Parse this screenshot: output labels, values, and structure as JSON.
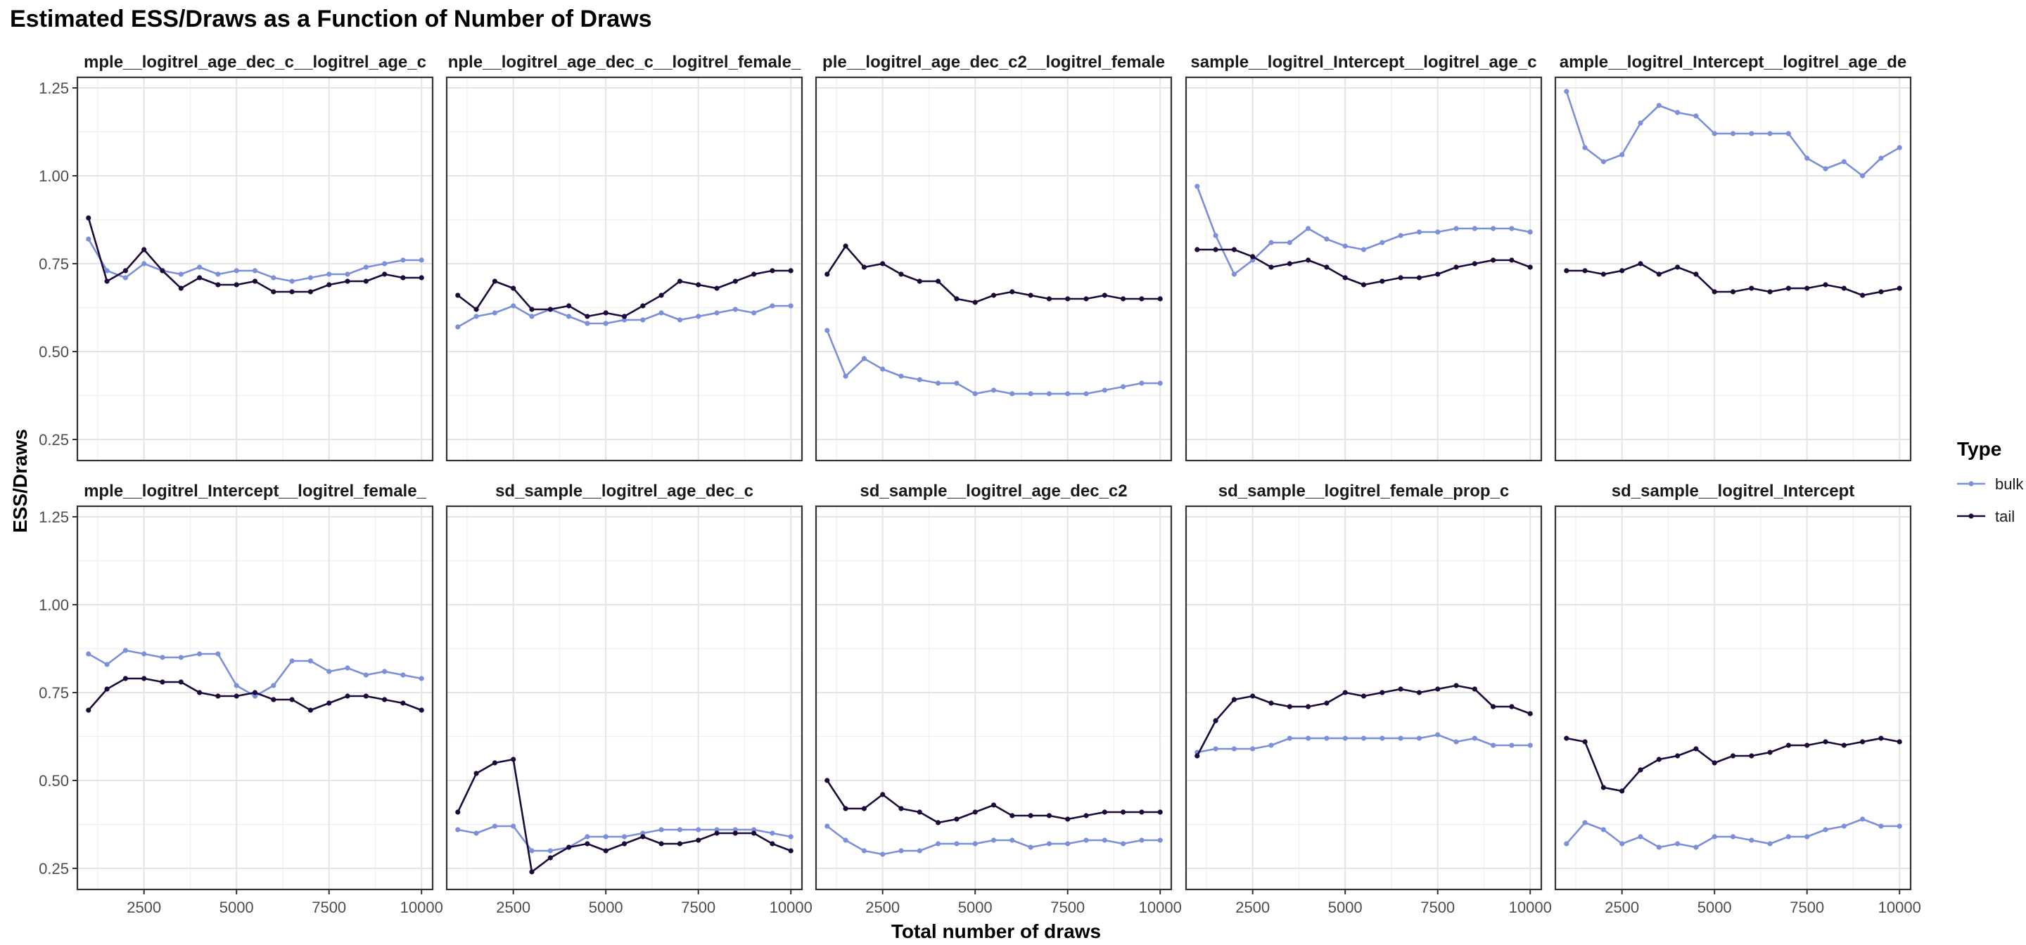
{
  "chart_data": {
    "type": "line",
    "title": "Estimated ESS/Draws as a Function of Number of Draws",
    "xlabel": "Total number of draws",
    "ylabel": "ESS/Draws",
    "xlim": [
      700,
      10300
    ],
    "ylim": [
      0.19,
      1.28
    ],
    "xticks": [
      2500,
      5000,
      7500,
      10000
    ],
    "xtick_labels": [
      "2500",
      "5000",
      "7500",
      "10000"
    ],
    "yticks": [
      0.25,
      0.5,
      0.75,
      1.0,
      1.25
    ],
    "ytick_labels": [
      "0.25",
      "0.50",
      "0.75",
      "1.00",
      "1.25"
    ],
    "grid": true,
    "layout": "facets 2 rows x 5 columns, shared axes",
    "legend": {
      "title": "Type",
      "position": "right",
      "entries": [
        {
          "label": "bulk",
          "color": "#7b8fdb"
        },
        {
          "label": "tail",
          "color": "#1c0a3b"
        }
      ]
    },
    "x": [
      1000,
      1500,
      2000,
      2500,
      3000,
      3500,
      4000,
      4500,
      5000,
      5500,
      6000,
      6500,
      7000,
      7500,
      8000,
      8500,
      9000,
      9500,
      10000
    ],
    "panels": [
      {
        "strip": "mple__logitrel_age_dec_c__logitrel_age_c",
        "series": [
          {
            "name": "bulk",
            "values": [
              0.82,
              0.73,
              0.71,
              0.75,
              0.73,
              0.72,
              0.74,
              0.72,
              0.73,
              0.73,
              0.71,
              0.7,
              0.71,
              0.72,
              0.72,
              0.74,
              0.75,
              0.76,
              0.76
            ]
          },
          {
            "name": "tail",
            "values": [
              0.88,
              0.7,
              0.73,
              0.79,
              0.73,
              0.68,
              0.71,
              0.69,
              0.69,
              0.7,
              0.67,
              0.67,
              0.67,
              0.69,
              0.7,
              0.7,
              0.72,
              0.71,
              0.71
            ]
          }
        ]
      },
      {
        "strip": "nple__logitrel_age_dec_c__logitrel_female_",
        "series": [
          {
            "name": "bulk",
            "values": [
              0.57,
              0.6,
              0.61,
              0.63,
              0.6,
              0.62,
              0.6,
              0.58,
              0.58,
              0.59,
              0.59,
              0.61,
              0.59,
              0.6,
              0.61,
              0.62,
              0.61,
              0.63,
              0.63
            ]
          },
          {
            "name": "tail",
            "values": [
              0.66,
              0.62,
              0.7,
              0.68,
              0.62,
              0.62,
              0.63,
              0.6,
              0.61,
              0.6,
              0.63,
              0.66,
              0.7,
              0.69,
              0.68,
              0.7,
              0.72,
              0.73,
              0.73
            ]
          }
        ]
      },
      {
        "strip": "ple__logitrel_age_dec_c2__logitrel_female",
        "series": [
          {
            "name": "bulk",
            "values": [
              0.56,
              0.43,
              0.48,
              0.45,
              0.43,
              0.42,
              0.41,
              0.41,
              0.38,
              0.39,
              0.38,
              0.38,
              0.38,
              0.38,
              0.38,
              0.39,
              0.4,
              0.41,
              0.41
            ]
          },
          {
            "name": "tail",
            "values": [
              0.72,
              0.8,
              0.74,
              0.75,
              0.72,
              0.7,
              0.7,
              0.65,
              0.64,
              0.66,
              0.67,
              0.66,
              0.65,
              0.65,
              0.65,
              0.66,
              0.65,
              0.65,
              0.65
            ]
          }
        ]
      },
      {
        "strip": "sample__logitrel_Intercept__logitrel_age_c",
        "series": [
          {
            "name": "bulk",
            "values": [
              0.97,
              0.83,
              0.72,
              0.76,
              0.81,
              0.81,
              0.85,
              0.82,
              0.8,
              0.79,
              0.81,
              0.83,
              0.84,
              0.84,
              0.85,
              0.85,
              0.85,
              0.85,
              0.84
            ]
          },
          {
            "name": "tail",
            "values": [
              0.79,
              0.79,
              0.79,
              0.77,
              0.74,
              0.75,
              0.76,
              0.74,
              0.71,
              0.69,
              0.7,
              0.71,
              0.71,
              0.72,
              0.74,
              0.75,
              0.76,
              0.76,
              0.74
            ]
          }
        ]
      },
      {
        "strip": "ample__logitrel_Intercept__logitrel_age_de",
        "series": [
          {
            "name": "bulk",
            "values": [
              1.24,
              1.08,
              1.04,
              1.06,
              1.15,
              1.2,
              1.18,
              1.17,
              1.12,
              1.12,
              1.12,
              1.12,
              1.12,
              1.05,
              1.02,
              1.04,
              1.0,
              1.05,
              1.08
            ]
          },
          {
            "name": "tail",
            "values": [
              0.73,
              0.73,
              0.72,
              0.73,
              0.75,
              0.72,
              0.74,
              0.72,
              0.67,
              0.67,
              0.68,
              0.67,
              0.68,
              0.68,
              0.69,
              0.68,
              0.66,
              0.67,
              0.68
            ]
          }
        ]
      },
      {
        "strip": "mple__logitrel_Intercept__logitrel_female_",
        "series": [
          {
            "name": "bulk",
            "values": [
              0.86,
              0.83,
              0.87,
              0.86,
              0.85,
              0.85,
              0.86,
              0.86,
              0.77,
              0.74,
              0.77,
              0.84,
              0.84,
              0.81,
              0.82,
              0.8,
              0.81,
              0.8,
              0.79
            ]
          },
          {
            "name": "tail",
            "values": [
              0.7,
              0.76,
              0.79,
              0.79,
              0.78,
              0.78,
              0.75,
              0.74,
              0.74,
              0.75,
              0.73,
              0.73,
              0.7,
              0.72,
              0.74,
              0.74,
              0.73,
              0.72,
              0.7
            ]
          }
        ]
      },
      {
        "strip": "sd_sample__logitrel_age_dec_c",
        "series": [
          {
            "name": "bulk",
            "values": [
              0.36,
              0.35,
              0.37,
              0.37,
              0.3,
              0.3,
              0.31,
              0.34,
              0.34,
              0.34,
              0.35,
              0.36,
              0.36,
              0.36,
              0.36,
              0.36,
              0.36,
              0.35,
              0.34
            ]
          },
          {
            "name": "tail",
            "values": [
              0.41,
              0.52,
              0.55,
              0.56,
              0.24,
              0.28,
              0.31,
              0.32,
              0.3,
              0.32,
              0.34,
              0.32,
              0.32,
              0.33,
              0.35,
              0.35,
              0.35,
              0.32,
              0.3
            ]
          }
        ]
      },
      {
        "strip": "sd_sample__logitrel_age_dec_c2",
        "series": [
          {
            "name": "bulk",
            "values": [
              0.37,
              0.33,
              0.3,
              0.29,
              0.3,
              0.3,
              0.32,
              0.32,
              0.32,
              0.33,
              0.33,
              0.31,
              0.32,
              0.32,
              0.33,
              0.33,
              0.32,
              0.33,
              0.33
            ]
          },
          {
            "name": "tail",
            "values": [
              0.5,
              0.42,
              0.42,
              0.46,
              0.42,
              0.41,
              0.38,
              0.39,
              0.41,
              0.43,
              0.4,
              0.4,
              0.4,
              0.39,
              0.4,
              0.41,
              0.41,
              0.41,
              0.41
            ]
          }
        ]
      },
      {
        "strip": "sd_sample__logitrel_female_prop_c",
        "series": [
          {
            "name": "bulk",
            "values": [
              0.58,
              0.59,
              0.59,
              0.59,
              0.6,
              0.62,
              0.62,
              0.62,
              0.62,
              0.62,
              0.62,
              0.62,
              0.62,
              0.63,
              0.61,
              0.62,
              0.6,
              0.6,
              0.6
            ]
          },
          {
            "name": "tail",
            "values": [
              0.57,
              0.67,
              0.73,
              0.74,
              0.72,
              0.71,
              0.71,
              0.72,
              0.75,
              0.74,
              0.75,
              0.76,
              0.75,
              0.76,
              0.77,
              0.76,
              0.71,
              0.71,
              0.69
            ]
          }
        ]
      },
      {
        "strip": "sd_sample__logitrel_Intercept",
        "series": [
          {
            "name": "bulk",
            "values": [
              0.32,
              0.38,
              0.36,
              0.32,
              0.34,
              0.31,
              0.32,
              0.31,
              0.34,
              0.34,
              0.33,
              0.32,
              0.34,
              0.34,
              0.36,
              0.37,
              0.39,
              0.37,
              0.37
            ]
          },
          {
            "name": "tail",
            "values": [
              0.62,
              0.61,
              0.48,
              0.47,
              0.53,
              0.56,
              0.57,
              0.59,
              0.55,
              0.57,
              0.57,
              0.58,
              0.6,
              0.6,
              0.61,
              0.6,
              0.61,
              0.62,
              0.61
            ]
          }
        ]
      }
    ]
  }
}
